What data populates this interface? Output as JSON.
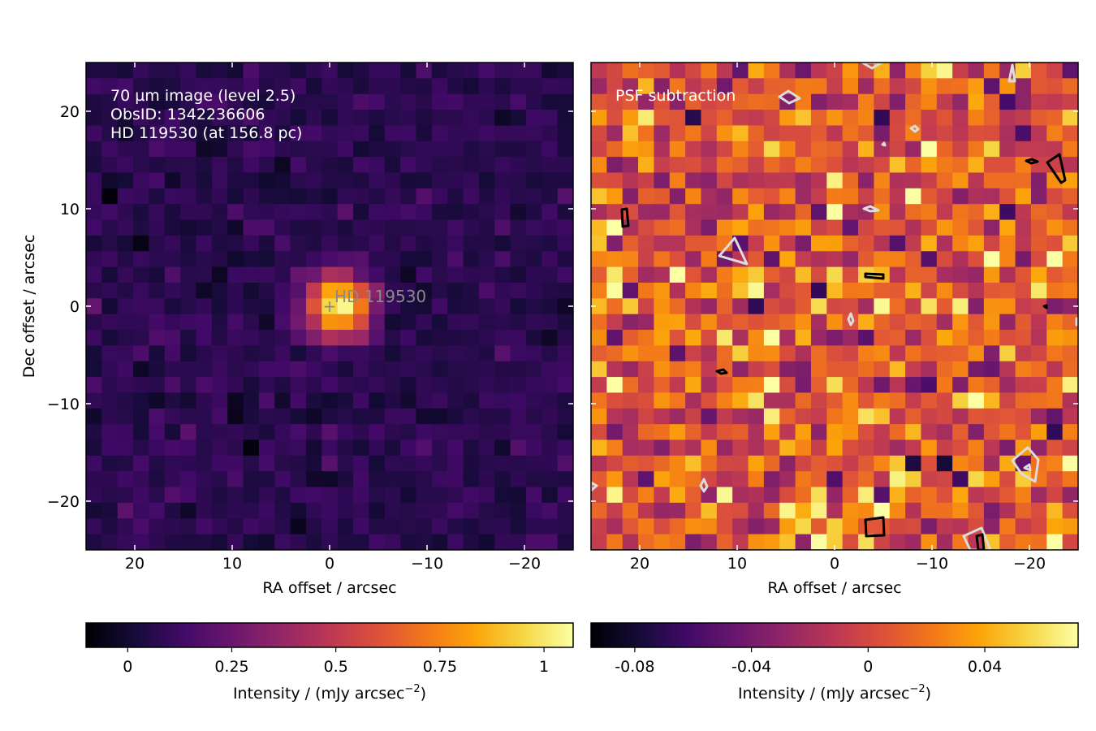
{
  "chart_data": [
    {
      "type": "heatmap",
      "panel": "left",
      "annotation_lines": [
        "70 µm image (level 2.5)",
        "ObsID: 1342236606",
        "HD 119530 (at 156.8 pc)"
      ],
      "source_label": "HD 119530",
      "source_marker": "+",
      "source_position_arcsec": [
        0,
        0
      ],
      "xlabel": "RA offset / arcsec",
      "ylabel": "Dec offset / arcsec",
      "xlim": [
        25,
        -25
      ],
      "ylim": [
        -25,
        25
      ],
      "xticks": [
        20,
        10,
        0,
        -10,
        -20
      ],
      "xtick_labels": [
        "20",
        "10",
        "0",
        "−10",
        "−20"
      ],
      "yticks": [
        20,
        10,
        0,
        -10,
        -20
      ],
      "ytick_labels": [
        "20",
        "10",
        "0",
        "−10",
        "−20"
      ],
      "colormap": "inferno",
      "grid": false,
      "pixel_count": [
        31,
        31
      ],
      "source_peak": 1.05,
      "background_level": 0.07,
      "colorbar": {
        "label_text": "Intensity / (mJy arcsec",
        "label_exponent": "−2",
        "label_suffix": ")",
        "range": [
          -0.1,
          1.07
        ],
        "ticks": [
          0,
          0.25,
          0.5,
          0.75,
          1
        ],
        "tick_labels": [
          "0",
          "0.25",
          "0.5",
          "0.75",
          "1"
        ]
      }
    },
    {
      "type": "heatmap",
      "panel": "right",
      "annotation_lines": [
        "PSF subtraction"
      ],
      "xlabel": "RA offset / arcsec",
      "xlim": [
        25,
        -25
      ],
      "ylim": [
        -25,
        25
      ],
      "xticks": [
        20,
        10,
        0,
        -10,
        -20
      ],
      "xtick_labels": [
        "20",
        "10",
        "0",
        "−10",
        "−20"
      ],
      "colormap": "inferno",
      "grid": false,
      "pixel_count": [
        31,
        31
      ],
      "contour_colors": [
        "#000000",
        "#dcdcdc"
      ],
      "colorbar": {
        "label_text": "Intensity / (mJy arcsec",
        "label_exponent": "−2",
        "label_suffix": ")",
        "range": [
          -0.095,
          0.072
        ],
        "ticks": [
          -0.08,
          -0.04,
          0,
          0.04
        ],
        "tick_labels": [
          "-0.08",
          "-0.04",
          "0",
          "0.04"
        ]
      }
    }
  ]
}
